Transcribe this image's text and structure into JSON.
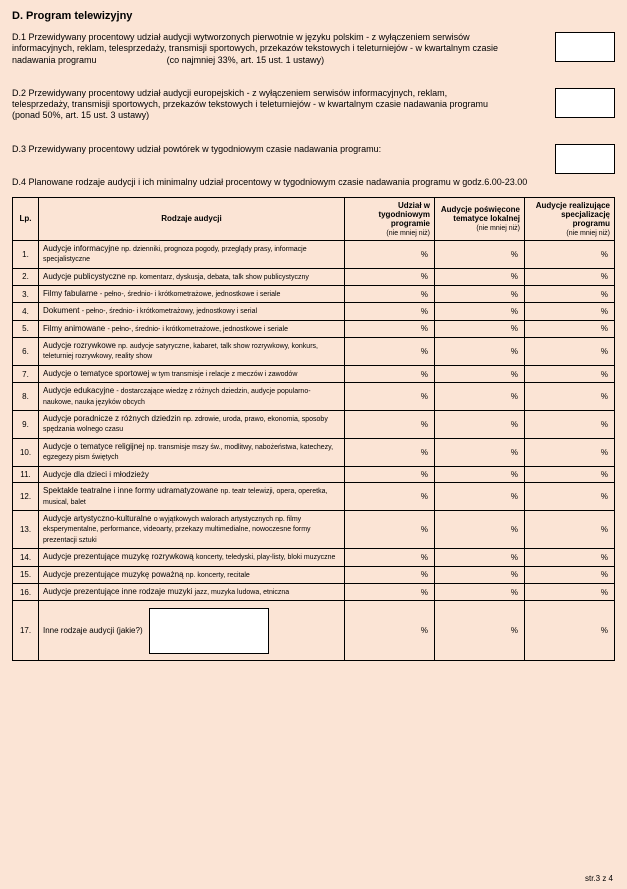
{
  "section_title": "D. Program telewizyjny",
  "d1": "D.1 Przewidywany procentowy udział audycji wytworzonych pierwotnie w języku polskim - z wyłączeniem serwisów informacyjnych, reklam, telesprzedaży, transmisji sportowych, przekazów tekstowych i teleturniejów - w kwartalnym czasie nadawania programu                            (co najmniej 33%, art. 15 ust. 1 ustawy)",
  "d2": "D.2 Przewidywany procentowy udział audycji europejskich - z wyłączeniem serwisów informacyjnych, reklam, telesprzedaży, transmisji sportowych, przekazów tekstowych i teleturniejów - w kwartalnym czasie nadawania programu (ponad 50%, art. 15 ust. 3 ustawy)",
  "d3": "D.3  Przewidywany procentowy udział powtórek w tygodniowym czasie nadawania programu:",
  "d4": "D.4  Planowane rodzaje audycji i ich minimalny udział procentowy w tygodniowym czasie nadawania programu  w godz.6.00-23.00",
  "headers": {
    "lp": "Lp.",
    "rodzaje": "Rodzaje audycji",
    "col1": "Udział w tygodniowym programie",
    "col1_sub": "(nie mniej niż)",
    "col2": "Audycje poświęcone tematyce lokalnej",
    "col2_sub": "(nie mniej niż)",
    "col3": "Audycje realizujące specjalizację programu",
    "col3_sub": "(nie mniej niż)"
  },
  "pct": "%",
  "rows": [
    {
      "n": "1.",
      "t": "Audycje informacyjne <span class='sub'>np. dzienniki, prognoza pogody, przeglądy prasy, informacje specjalistyczne</span>"
    },
    {
      "n": "2.",
      "t": "Audycje publicystyczne <span class='sub'>np. komentarz, dyskusja, debata, talk show publicystyczny</span>"
    },
    {
      "n": "3.",
      "t": "Filmy fabularne <span class='sub'>- pełno-, średnio- i krótkometrażowe, jednostkowe i seriale</span>"
    },
    {
      "n": "4.",
      "t": "Dokument <span class='sub'>- pełno-, średnio- i krótkometrażowy, jednostkowy i serial</span>"
    },
    {
      "n": "5.",
      "t": "Filmy animowane <span class='sub'>- pełno-, średnio- i krótkometrażowe, jednostkowe i seriale</span>"
    },
    {
      "n": "6.",
      "t": "Audycje rozrywkowe <span class='sub'>np. audycje satyryczne, kabaret, talk show rozrywkowy, konkurs, teleturniej rozrywkowy, reality show</span>"
    },
    {
      "n": "7.",
      "t": "Audycje  o tematyce sportowej <span class='sub'>w tym transmisje i relacje z meczów i zawodów</span>"
    },
    {
      "n": "8.",
      "t": "Audycje edukacyjne <span class='sub'>- dostarczające wiedzę z różnych dziedzin, audycje popularno-naukowe, nauka języków obcych</span>"
    },
    {
      "n": "9.",
      "t": "Audycje poradnicze z różnych dziedzin <span class='sub'>np. zdrowie, uroda, prawo, ekonomia, sposoby spędzania wolnego czasu</span>"
    },
    {
      "n": "10.",
      "t": "Audycje o tematyce religijnej <span class='sub'>np. transmisje mszy św., modlitwy, nabożeństwa, katechezy, egzegezy pism świętych</span>"
    },
    {
      "n": "11.",
      "t": "Audycje dla dzieci i młodzieży"
    },
    {
      "n": "12.",
      "t": "Spektakle teatralne i inne formy udramatyzowane <span class='sub'>np. teatr telewizji, opera, operetka, musical, balet</span>"
    },
    {
      "n": "13.",
      "t": "Audycje artystyczno-kulturalne <span class='sub'>o wyjątkowych walorach artystycznych np. filmy eksperymentalne, performance, videoarty, przekazy multimedialne,  nowoczesne formy prezentacji sztuki</span>"
    },
    {
      "n": "14.",
      "t": "Audycje prezentujące muzykę rozrywkową <span class='sub'>koncerty, teledyski, play-listy, bloki muzyczne</span>"
    },
    {
      "n": "15.",
      "t": "Audycje prezentujące muzykę poważną <span class='sub'>np. koncerty, recitale</span>"
    },
    {
      "n": "16.",
      "t": "Audycje prezentujące inne rodzaje muzyki <span class='sub'>jazz, muzyka ludowa, etniczna</span>"
    }
  ],
  "row17": {
    "n": "17.",
    "label": "Inne rodzaje audycji (jakie?)"
  },
  "footer": "str.3 z 4"
}
